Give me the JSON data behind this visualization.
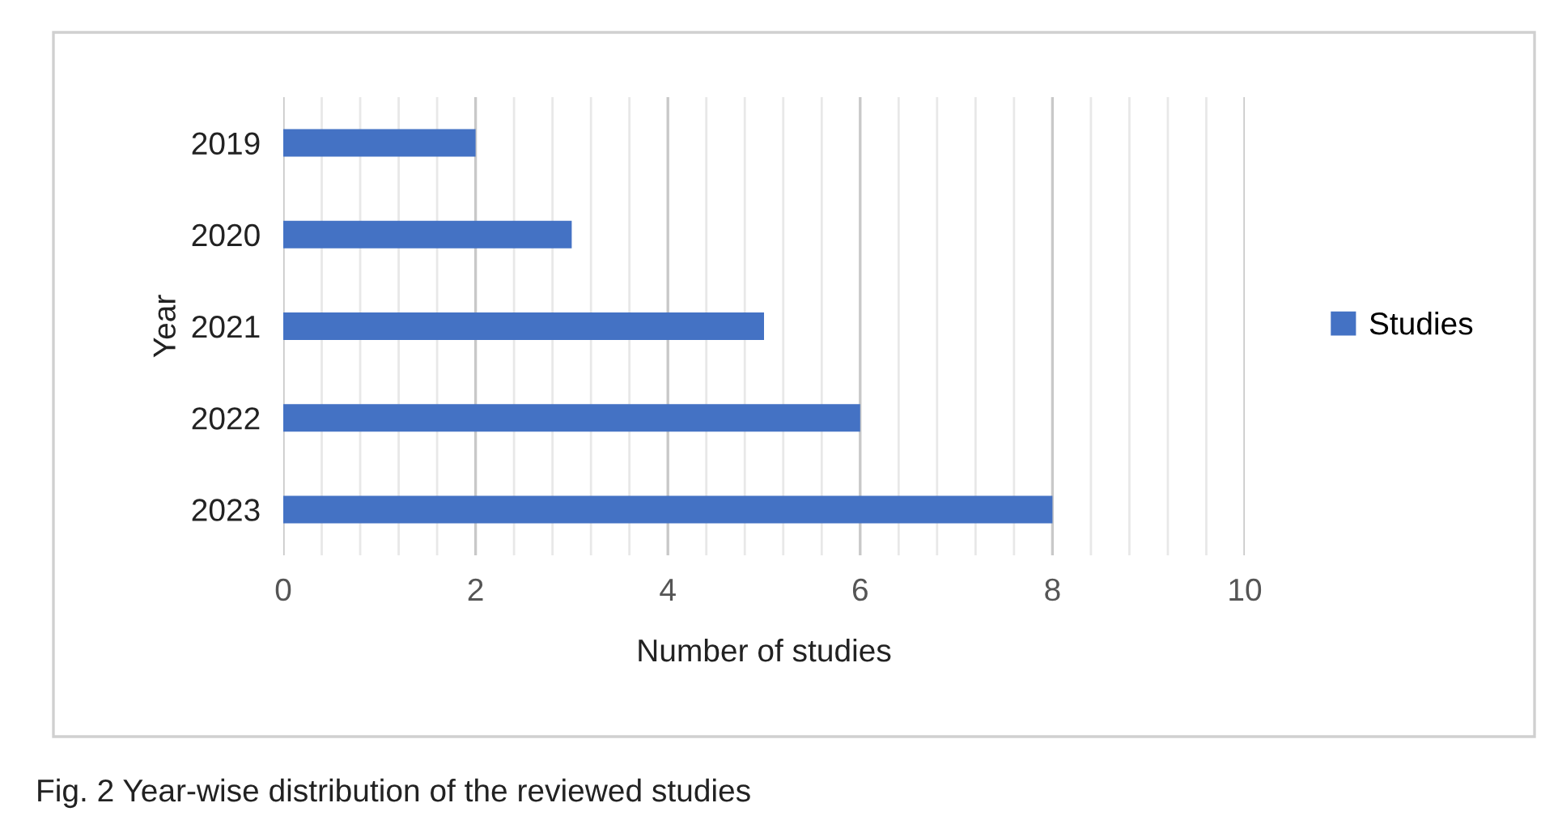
{
  "chart_data": {
    "type": "bar",
    "orientation": "horizontal",
    "xlabel": "Number of studies",
    "ylabel": "Year",
    "categories": [
      "2019",
      "2020",
      "2021",
      "2022",
      "2023"
    ],
    "series": [
      {
        "name": "Studies",
        "color": "#4472c4",
        "values": [
          2,
          3,
          5,
          6,
          8
        ]
      }
    ],
    "xlim": [
      0,
      10
    ],
    "xticks": [
      0,
      2,
      4,
      6,
      8,
      10
    ],
    "grid": "x",
    "legend": "right",
    "annotations": [
      "Fig. 2 Year-wise distribution of the reviewed studies"
    ]
  }
}
